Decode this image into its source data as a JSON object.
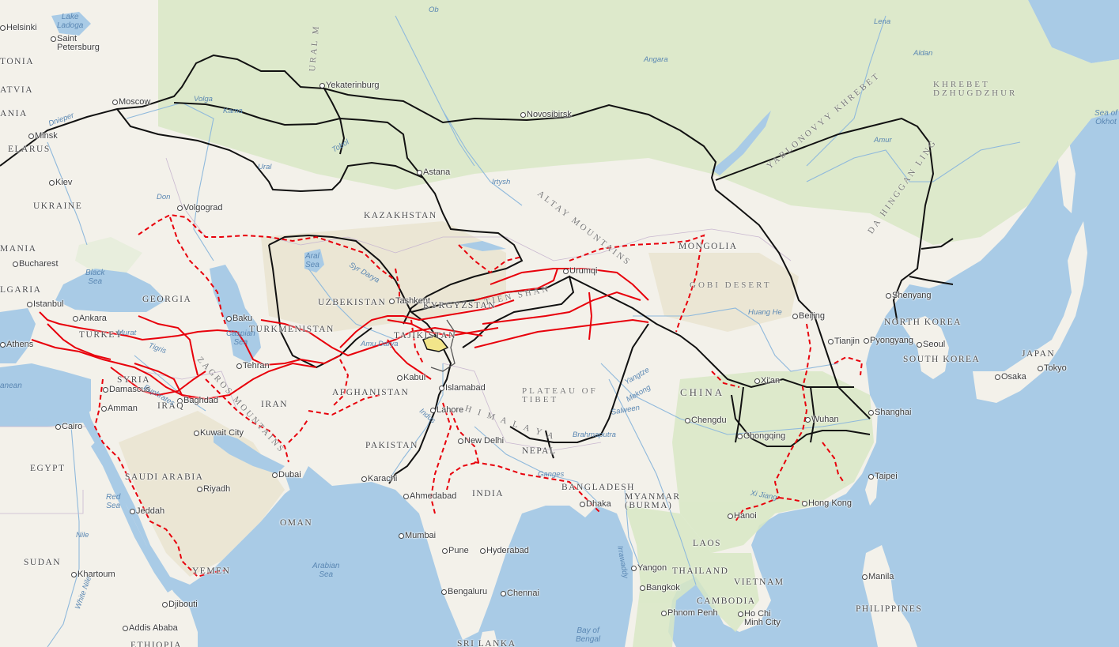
{
  "colors": {
    "ocean": "#a9cbe6",
    "land": "#f3f1ea",
    "forest": "#d8e8c5",
    "desert": "#eae4d2",
    "historic_route": "#000000",
    "proposed_route": "#e8000b"
  },
  "cities": [
    {
      "id": "helsinki",
      "name": "Helsinki"
    },
    {
      "id": "saint-petersburg",
      "name": "Saint\nPetersburg"
    },
    {
      "id": "moscow",
      "name": "Moscow"
    },
    {
      "id": "minsk",
      "name": "Minsk"
    },
    {
      "id": "kiev",
      "name": "Kiev"
    },
    {
      "id": "volgograd",
      "name": "Volgograd"
    },
    {
      "id": "bucharest",
      "name": "Bucharest"
    },
    {
      "id": "istanbul",
      "name": "Istanbul"
    },
    {
      "id": "ankara",
      "name": "Ankara"
    },
    {
      "id": "athens",
      "name": "Athens"
    },
    {
      "id": "baku",
      "name": "Baku"
    },
    {
      "id": "tehran",
      "name": "Tehran"
    },
    {
      "id": "damascus",
      "name": "Damascus"
    },
    {
      "id": "amman",
      "name": "Amman"
    },
    {
      "id": "baghdad",
      "name": "Baghdad"
    },
    {
      "id": "cairo",
      "name": "Cairo"
    },
    {
      "id": "kuwait-city",
      "name": "Kuwait City"
    },
    {
      "id": "riyadh",
      "name": "Riyadh"
    },
    {
      "id": "dubai",
      "name": "Dubai"
    },
    {
      "id": "jeddah",
      "name": "Jeddah"
    },
    {
      "id": "khartoum",
      "name": "Khartoum"
    },
    {
      "id": "djibouti",
      "name": "Djibouti"
    },
    {
      "id": "addis-ababa",
      "name": "Addis Ababa"
    },
    {
      "id": "yekaterinburg",
      "name": "Yekaterinburg"
    },
    {
      "id": "novosibirsk",
      "name": "Novosibirsk"
    },
    {
      "id": "astana",
      "name": "Astana"
    },
    {
      "id": "tashkent",
      "name": "Tashkent"
    },
    {
      "id": "kabul",
      "name": "Kabul"
    },
    {
      "id": "islamabad",
      "name": "Islamabad"
    },
    {
      "id": "lahore",
      "name": "Lahore"
    },
    {
      "id": "new-delhi",
      "name": "New Delhi"
    },
    {
      "id": "karachi",
      "name": "Karachi"
    },
    {
      "id": "ahmedabad",
      "name": "Ahmedabad"
    },
    {
      "id": "mumbai",
      "name": "Mumbai"
    },
    {
      "id": "pune",
      "name": "Pune"
    },
    {
      "id": "hyderabad",
      "name": "Hyderabad"
    },
    {
      "id": "bengaluru",
      "name": "Bengaluru"
    },
    {
      "id": "chennai",
      "name": "Chennai"
    },
    {
      "id": "dhaka",
      "name": "Dhaka"
    },
    {
      "id": "yangon",
      "name": "Yangon"
    },
    {
      "id": "bangkok",
      "name": "Bangkok"
    },
    {
      "id": "phnom-penh",
      "name": "Phnom Penh"
    },
    {
      "id": "ho-chi-minh",
      "name": "Ho Chi\nMinh City"
    },
    {
      "id": "hanoi",
      "name": "Hanoi"
    },
    {
      "id": "hong-kong",
      "name": "Hong Kong"
    },
    {
      "id": "taipei",
      "name": "Taipei"
    },
    {
      "id": "manila",
      "name": "Manila"
    },
    {
      "id": "urumqi",
      "name": "Urumqi"
    },
    {
      "id": "chengdu",
      "name": "Chengdu"
    },
    {
      "id": "chongqing",
      "name": "Chongqing"
    },
    {
      "id": "xian",
      "name": "Xi'an"
    },
    {
      "id": "wuhan",
      "name": "Wuhan"
    },
    {
      "id": "shanghai",
      "name": "Shanghai"
    },
    {
      "id": "beijing",
      "name": "Beijing"
    },
    {
      "id": "tianjin",
      "name": "Tianjin"
    },
    {
      "id": "shenyang",
      "name": "Shenyang"
    },
    {
      "id": "pyongyang",
      "name": "Pyongyang"
    },
    {
      "id": "seoul",
      "name": "Seoul"
    },
    {
      "id": "tokyo",
      "name": "Tokyo"
    },
    {
      "id": "osaka",
      "name": "Osaka"
    }
  ],
  "countries": [
    {
      "id": "estonia",
      "name": "TONIA"
    },
    {
      "id": "latvia",
      "name": "ATVIA"
    },
    {
      "id": "lithuania",
      "name": "ANIA"
    },
    {
      "id": "belarus",
      "name": "ELARUS"
    },
    {
      "id": "ukraine",
      "name": "UKRAINE"
    },
    {
      "id": "romania",
      "name": "MANIA"
    },
    {
      "id": "bulgaria",
      "name": "LGARIA"
    },
    {
      "id": "georgia",
      "name": "GEORGIA"
    },
    {
      "id": "turkey",
      "name": "TURKEY"
    },
    {
      "id": "syria",
      "name": "SYRIA"
    },
    {
      "id": "iraq",
      "name": "IRAQ"
    },
    {
      "id": "iran",
      "name": "IRAN"
    },
    {
      "id": "egypt",
      "name": "EGYPT"
    },
    {
      "id": "saudi-arabia",
      "name": "SAUDI ARABIA"
    },
    {
      "id": "oman",
      "name": "OMAN"
    },
    {
      "id": "yemen",
      "name": "YEMEN"
    },
    {
      "id": "sudan",
      "name": "SUDAN"
    },
    {
      "id": "ethiopia",
      "name": "ETHIOPIA"
    },
    {
      "id": "kazakhstan",
      "name": "KAZAKHSTAN"
    },
    {
      "id": "uzbekistan",
      "name": "UZBEKISTAN"
    },
    {
      "id": "turkmenistan",
      "name": "TURKMENISTAN"
    },
    {
      "id": "kyrgyzstan",
      "name": "KYRGYZSTAN"
    },
    {
      "id": "tajikistan",
      "name": "TAJIKISTAN"
    },
    {
      "id": "afghanistan",
      "name": "AFGHANISTAN"
    },
    {
      "id": "pakistan",
      "name": "PAKISTAN"
    },
    {
      "id": "india",
      "name": "INDIA"
    },
    {
      "id": "nepal",
      "name": "NEPAL"
    },
    {
      "id": "bangladesh",
      "name": "BANGLADESH"
    },
    {
      "id": "myanmar",
      "name": "MYANMAR\n(BURMA)"
    },
    {
      "id": "laos",
      "name": "LAOS"
    },
    {
      "id": "thailand",
      "name": "THAILAND"
    },
    {
      "id": "vietnam",
      "name": "VIETNAM"
    },
    {
      "id": "cambodia",
      "name": "CAMBODIA"
    },
    {
      "id": "philippines",
      "name": "PHILIPPINES"
    },
    {
      "id": "sri-lanka",
      "name": "SRI LANKA"
    },
    {
      "id": "mongolia",
      "name": "MONGOLIA"
    },
    {
      "id": "china",
      "name": "CHINA"
    },
    {
      "id": "north-korea",
      "name": "NORTH KOREA"
    },
    {
      "id": "south-korea",
      "name": "SOUTH KOREA"
    },
    {
      "id": "japan",
      "name": "JAPAN"
    }
  ],
  "regions": [
    {
      "id": "ural-mountains",
      "name": "URAL M"
    },
    {
      "id": "altay-mountains",
      "name": "ALTAY MOUNTAINS"
    },
    {
      "id": "tien-shan",
      "name": "TIEN SHAN"
    },
    {
      "id": "gobi-desert",
      "name": "GOBI DESERT"
    },
    {
      "id": "plateau-of-tibet",
      "name": "PLATEAU OF\nTIBET"
    },
    {
      "id": "himalaya",
      "name": "H I M A L A Y A"
    },
    {
      "id": "zagros-mountains",
      "name": "ZAGROS MOUNTAINS"
    },
    {
      "id": "yablonovy",
      "name": "YABLONOVYY KHREBET"
    },
    {
      "id": "da-hinggan",
      "name": "DA HINGGAN LING"
    },
    {
      "id": "dzhugdzhur",
      "name": "KHREBET\nDZHUGDZHUR"
    }
  ],
  "waters": [
    {
      "id": "lake-ladoga",
      "name": "Lake\nLadoga"
    },
    {
      "id": "black-sea",
      "name": "Black\nSea"
    },
    {
      "id": "caspian-sea",
      "name": "Caspian\nSea"
    },
    {
      "id": "aral-sea",
      "name": "Aral\nSea"
    },
    {
      "id": "red-sea",
      "name": "Red\nSea"
    },
    {
      "id": "arabian-sea",
      "name": "Arabian\nSea"
    },
    {
      "id": "bay-of-bengal",
      "name": "Bay of\nBengal"
    },
    {
      "id": "sea-of-okhotsk",
      "name": "Sea of\nOkhot"
    },
    {
      "id": "mediterranean",
      "name": "anean"
    }
  ],
  "rivers": [
    {
      "id": "ob",
      "name": "Ob"
    },
    {
      "id": "lena",
      "name": "Lena"
    },
    {
      "id": "aldan",
      "name": "Aldan"
    },
    {
      "id": "angara",
      "name": "Angara"
    },
    {
      "id": "volga",
      "name": "Volga"
    },
    {
      "id": "kama",
      "name": "Kama"
    },
    {
      "id": "tobol",
      "name": "Tobol"
    },
    {
      "id": "ural",
      "name": "Ural"
    },
    {
      "id": "don",
      "name": "Don"
    },
    {
      "id": "dnieper",
      "name": "Dnieper"
    },
    {
      "id": "irtysh",
      "name": "Irtysh"
    },
    {
      "id": "amur",
      "name": "Amur"
    },
    {
      "id": "huang-he",
      "name": "Huang He"
    },
    {
      "id": "yangtze",
      "name": "Yangtze"
    },
    {
      "id": "mekong",
      "name": "Mekong"
    },
    {
      "id": "salween",
      "name": "Salween"
    },
    {
      "id": "brahmaputra",
      "name": "Brahmaputra"
    },
    {
      "id": "ganges",
      "name": "Ganges"
    },
    {
      "id": "indus",
      "name": "Indus"
    },
    {
      "id": "amu-darya",
      "name": "Amu Darya"
    },
    {
      "id": "euphrates",
      "name": "Euphrates"
    },
    {
      "id": "tigris",
      "name": "Tigris"
    },
    {
      "id": "murat",
      "name": "Murat"
    },
    {
      "id": "nile",
      "name": "Nile"
    },
    {
      "id": "white-nile",
      "name": "White Nile"
    },
    {
      "id": "irrawaddy",
      "name": "Irrawaddy"
    },
    {
      "id": "xi-jiang",
      "name": "Xi Jiang"
    },
    {
      "id": "syr-darya",
      "name": "Syr Darya"
    }
  ]
}
